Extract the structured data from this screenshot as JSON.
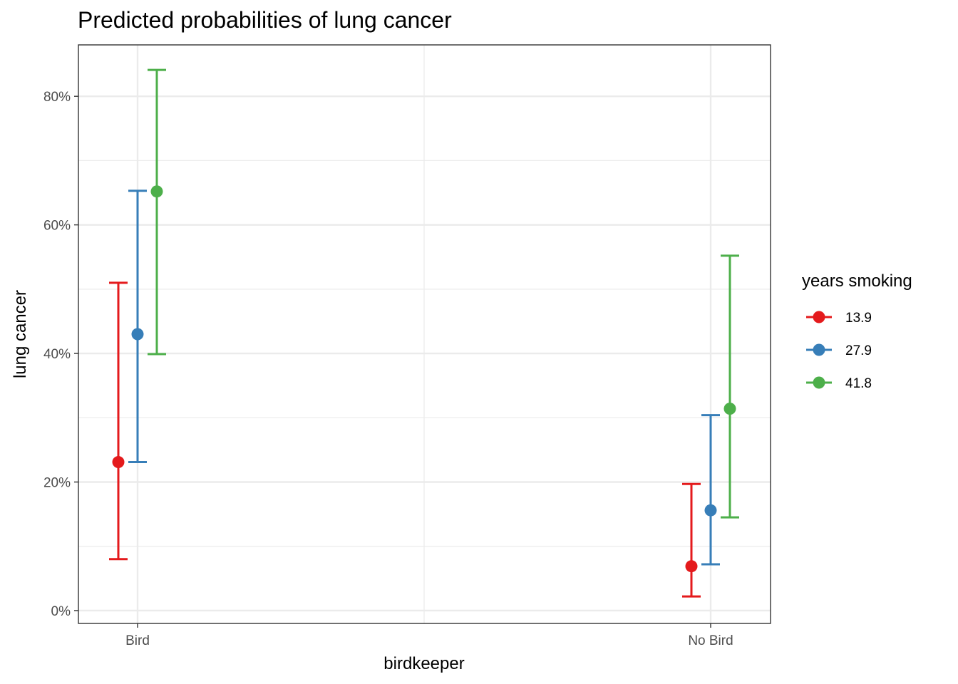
{
  "chart_data": {
    "type": "scatter",
    "title": "Predicted probabilities of lung cancer",
    "xlabel": "birdkeeper",
    "ylabel": "lung cancer",
    "categories": [
      "Bird",
      "No Bird"
    ],
    "ylim": [
      -0.02,
      0.88
    ],
    "yticks": [
      0,
      0.2,
      0.4,
      0.6,
      0.8
    ],
    "ytick_labels": [
      "0%",
      "20%",
      "40%",
      "60%",
      "80%"
    ],
    "grid": true,
    "legend": {
      "title": "years smoking",
      "position": "right"
    },
    "series": [
      {
        "name": "13.9",
        "color": "#e41a1c",
        "points": [
          {
            "x": "Bird",
            "y": 0.231,
            "ymin": 0.08,
            "ymax": 0.51
          },
          {
            "x": "No Bird",
            "y": 0.069,
            "ymin": 0.022,
            "ymax": 0.197
          }
        ]
      },
      {
        "name": "27.9",
        "color": "#377eb8",
        "points": [
          {
            "x": "Bird",
            "y": 0.43,
            "ymin": 0.231,
            "ymax": 0.653
          },
          {
            "x": "No Bird",
            "y": 0.156,
            "ymin": 0.072,
            "ymax": 0.304
          }
        ]
      },
      {
        "name": "41.8",
        "color": "#4daf4a",
        "points": [
          {
            "x": "Bird",
            "y": 0.652,
            "ymin": 0.399,
            "ymax": 0.841
          },
          {
            "x": "No Bird",
            "y": 0.314,
            "ymin": 0.145,
            "ymax": 0.552
          }
        ]
      }
    ]
  }
}
